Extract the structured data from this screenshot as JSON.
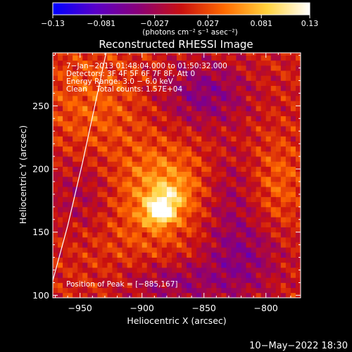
{
  "chart_data": {
    "type": "heatmap",
    "title": "Reconstructed RHESSI Image",
    "xlabel": "Heliocentric X (arcsec)",
    "ylabel": "Heliocentric Y (arcsec)",
    "xlim": [
      -972,
      -772
    ],
    "ylim": [
      98,
      292
    ],
    "x_ticks": [
      -950,
      -900,
      -850,
      -800
    ],
    "x_tick_labels": [
      "−950",
      "−900",
      "−850",
      "−800"
    ],
    "y_ticks": [
      100,
      150,
      200,
      250
    ],
    "y_tick_labels": [
      "100",
      "150",
      "200",
      "250"
    ],
    "colorbar": {
      "range": [
        -0.13,
        0.13
      ],
      "ticks": [
        -0.13,
        -0.081,
        -0.027,
        0.027,
        0.081,
        0.13
      ],
      "tick_labels": [
        "−0.13",
        "−0.081",
        "−0.027",
        "0.027",
        "0.081",
        "0.13"
      ],
      "units_label": "(photons cm⁻² s⁻¹ asec⁻²)",
      "colors": [
        "#0000ff",
        "#5a00c8",
        "#8a0078",
        "#c81010",
        "#ff6a00",
        "#ffd23c",
        "#ffffff"
      ]
    },
    "annotations": [
      "7−Jan−2013 01:48:04.000 to 01:50:32.000",
      "Detectors: 3F 4F 5F 6F 7F 8F, Att 0",
      "Energy Range: 3.0 − 6.0 keV",
      "Clean    Total counts: 1.57E+04"
    ],
    "peak_label": "Position of Peak = [−885,167]",
    "peak": {
      "x": -885,
      "y": 167,
      "value": 0.13
    },
    "limb_curve": [
      {
        "x": -973,
        "y": 108
      },
      {
        "x": -960,
        "y": 155
      },
      {
        "x": -948,
        "y": 205
      },
      {
        "x": -937,
        "y": 255
      },
      {
        "x": -929,
        "y": 292
      }
    ],
    "blobs": [
      {
        "x": -885,
        "y": 167,
        "sx": 8,
        "sy": 7,
        "amp": 0.11
      },
      {
        "x": -878,
        "y": 180,
        "sx": 10,
        "sy": 8,
        "amp": 0.04
      },
      {
        "x": -890,
        "y": 175,
        "sx": 30,
        "sy": 28,
        "amp": 0.04
      },
      {
        "x": -880,
        "y": 195,
        "sx": 22,
        "sy": 18,
        "amp": 0.02
      },
      {
        "x": -940,
        "y": 250,
        "sx": 30,
        "sy": 35,
        "amp": 0.03
      },
      {
        "x": -790,
        "y": 190,
        "sx": 14,
        "sy": 25,
        "amp": 0.03
      },
      {
        "x": -935,
        "y": 140,
        "sx": 30,
        "sy": 30,
        "amp": 0.01
      },
      {
        "x": -850,
        "y": 260,
        "sx": 25,
        "sy": 18,
        "amp": -0.05
      },
      {
        "x": -820,
        "y": 130,
        "sx": 22,
        "sy": 22,
        "amp": -0.045
      },
      {
        "x": -945,
        "y": 180,
        "sx": 22,
        "sy": 25,
        "amp": -0.035
      },
      {
        "x": -875,
        "y": 110,
        "sx": 30,
        "sy": 12,
        "amp": -0.04
      },
      {
        "x": -830,
        "y": 180,
        "sx": 15,
        "sy": 25,
        "amp": -0.03
      }
    ]
  },
  "footer": {
    "timestamp": "10−May−2022 18:30"
  }
}
